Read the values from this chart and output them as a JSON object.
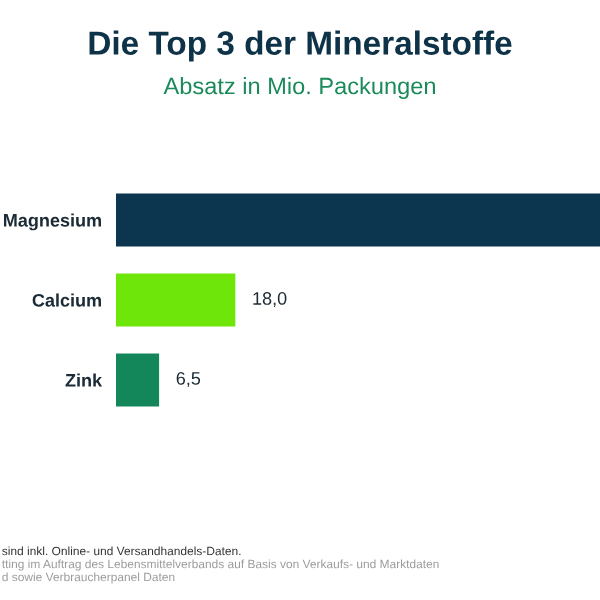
{
  "chart_data": {
    "type": "bar",
    "orientation": "horizontal",
    "title": "Die Top 3 der Mineralstoffe",
    "subtitle": "Absatz in Mio. Packungen",
    "categories": [
      "Magnesium",
      "Calcium",
      "Zink"
    ],
    "values": [
      73,
      18.0,
      6.5
    ],
    "colors": [
      "#0c3650",
      "#6ee60a",
      "#13865a"
    ],
    "value_labels": [
      null,
      "18,0",
      "6,5"
    ],
    "annotations": [
      "sind inkl. Online- und Versandhandels-Daten.",
      "tting im Auftrag des Lebensmittelverbands auf Basis von Verkaufs- und Marktdaten",
      "d sowie Verbraucherpanel Daten"
    ],
    "grid": false,
    "legend": false
  }
}
